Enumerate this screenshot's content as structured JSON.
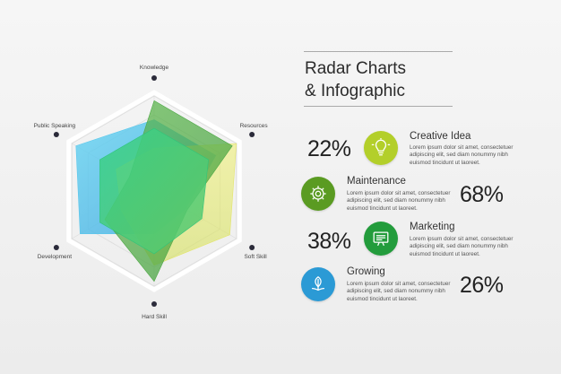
{
  "title": {
    "line1": "Radar Charts",
    "line2": "& Infographic"
  },
  "chart_data": {
    "type": "radar",
    "axes": [
      "Knowledge",
      "Resources",
      "Soft Skill",
      "Hard Skill",
      "Development",
      "Public Speaking"
    ],
    "range": [
      0,
      100
    ],
    "grid": true,
    "series": [
      {
        "color": "#5bc8ec",
        "values": [
          75,
          75,
          38,
          45,
          90,
          95
        ]
      },
      {
        "color": "#e3e56a",
        "values": [
          45,
          100,
          92,
          78,
          40,
          46
        ]
      },
      {
        "color": "#4ea846",
        "values": [
          95,
          95,
          40,
          95,
          60,
          30
        ]
      },
      {
        "color": "#2fc47a",
        "values": [
          66,
          66,
          58,
          66,
          66,
          66
        ]
      }
    ]
  },
  "items": [
    {
      "percent": "22%",
      "title": "Creative Idea",
      "desc": "Lorem ipsum dolor sit amet, consectetuer adipiscing elit, sed diam nonummy nibh euismod tincidunt ut laoreet.",
      "icon": "lightbulb-icon",
      "color": "#b3cf2a"
    },
    {
      "percent": "68%",
      "title": "Maintenance",
      "desc": "Lorem ipsum dolor sit amet, consectetuer adipiscing elit, sed diam nonummy nibh euismod tincidunt ut laoreet.",
      "icon": "gear-icon",
      "color": "#5a9b22"
    },
    {
      "percent": "38%",
      "title": "Marketing",
      "desc": "Lorem ipsum dolor sit amet, consectetuer adipiscing elit, sed diam nonummy nibh euismod tincidunt ut laoreet.",
      "icon": "presentation-icon",
      "color": "#239c3c"
    },
    {
      "percent": "26%",
      "title": "Growing",
      "desc": "Lorem ipsum dolor sit amet, consectetuer adipiscing elit, sed diam nonummy nibh euismod tincidunt ut laoreet.",
      "icon": "leaf-icon",
      "color": "#2b9ad5"
    }
  ]
}
